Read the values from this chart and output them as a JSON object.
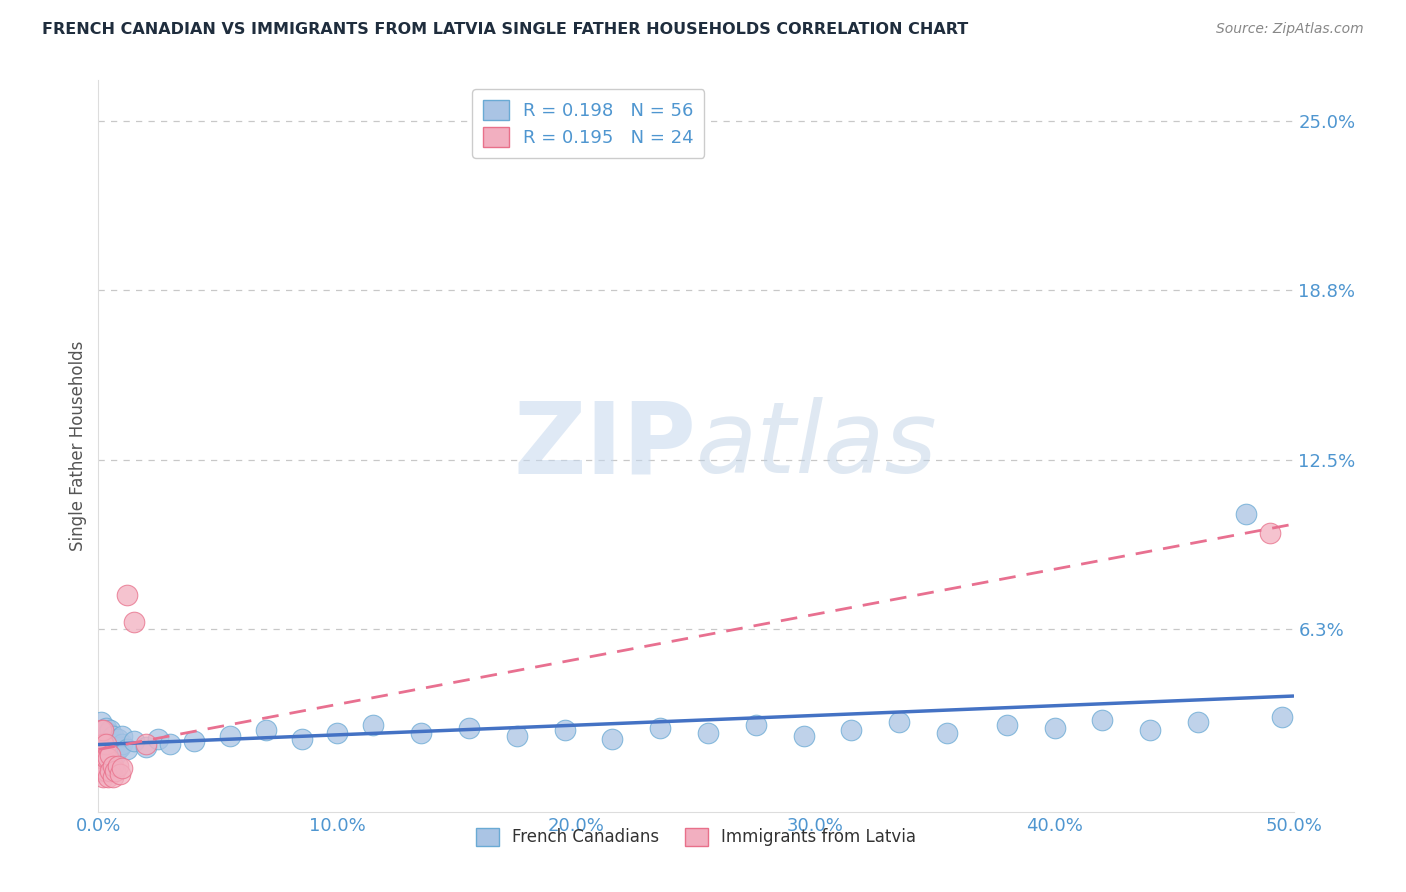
{
  "title": "FRENCH CANADIAN VS IMMIGRANTS FROM LATVIA SINGLE FATHER HOUSEHOLDS CORRELATION CHART",
  "source_text": "Source: ZipAtlas.com",
  "ylabel": "Single Father Households",
  "watermark_zip": "ZIP",
  "watermark_atlas": "atlas",
  "xlim": [
    0.0,
    0.5
  ],
  "ylim": [
    -0.005,
    0.265
  ],
  "ytick_vals": [
    0.0625,
    0.125,
    0.1875,
    0.25
  ],
  "ytick_labels": [
    "6.3%",
    "12.5%",
    "18.8%",
    "25.0%"
  ],
  "xtick_vals": [
    0.0,
    0.1,
    0.2,
    0.3,
    0.4,
    0.5
  ],
  "xtick_labels": [
    "0.0%",
    "10.0%",
    "20.0%",
    "30.0%",
    "40.0%",
    "50.0%"
  ],
  "legend_label1": "French Canadians",
  "legend_label2": "Immigrants from Latvia",
  "series1_face_color": "#aac4e4",
  "series2_face_color": "#f2afc0",
  "series1_edge_color": "#6aaad4",
  "series2_edge_color": "#e8708a",
  "line1_color": "#4472c4",
  "line2_color": "#e87090",
  "title_color": "#1f2d3d",
  "axis_label_color": "#555555",
  "tick_color": "#4f96d0",
  "gridline_color": "#c8c8c8",
  "background_color": "#ffffff",
  "r1": 0.198,
  "n1": 56,
  "r2": 0.195,
  "n2": 24,
  "fc_x": [
    0.001,
    0.001,
    0.002,
    0.002,
    0.002,
    0.003,
    0.003,
    0.003,
    0.003,
    0.004,
    0.004,
    0.004,
    0.005,
    0.005,
    0.005,
    0.005,
    0.006,
    0.006,
    0.006,
    0.007,
    0.007,
    0.008,
    0.008,
    0.009,
    0.01,
    0.01,
    0.012,
    0.015,
    0.02,
    0.025,
    0.03,
    0.04,
    0.055,
    0.07,
    0.085,
    0.1,
    0.115,
    0.135,
    0.155,
    0.175,
    0.195,
    0.215,
    0.235,
    0.255,
    0.275,
    0.295,
    0.315,
    0.335,
    0.355,
    0.38,
    0.4,
    0.42,
    0.44,
    0.46,
    0.48,
    0.495
  ],
  "fc_y": [
    0.022,
    0.028,
    0.018,
    0.025,
    0.02,
    0.015,
    0.02,
    0.023,
    0.026,
    0.018,
    0.021,
    0.024,
    0.016,
    0.019,
    0.022,
    0.025,
    0.017,
    0.02,
    0.023,
    0.016,
    0.02,
    0.018,
    0.022,
    0.019,
    0.02,
    0.023,
    0.018,
    0.021,
    0.019,
    0.022,
    0.02,
    0.021,
    0.023,
    0.025,
    0.022,
    0.024,
    0.027,
    0.024,
    0.026,
    0.023,
    0.025,
    0.022,
    0.026,
    0.024,
    0.027,
    0.023,
    0.025,
    0.028,
    0.024,
    0.027,
    0.026,
    0.029,
    0.025,
    0.028,
    0.105,
    0.03
  ],
  "lv_x": [
    0.001,
    0.001,
    0.001,
    0.002,
    0.002,
    0.002,
    0.002,
    0.003,
    0.003,
    0.003,
    0.004,
    0.004,
    0.005,
    0.005,
    0.006,
    0.006,
    0.007,
    0.008,
    0.009,
    0.01,
    0.012,
    0.015,
    0.02,
    0.49
  ],
  "lv_y": [
    0.01,
    0.018,
    0.025,
    0.008,
    0.015,
    0.02,
    0.025,
    0.01,
    0.015,
    0.02,
    0.008,
    0.015,
    0.01,
    0.016,
    0.008,
    0.012,
    0.01,
    0.012,
    0.009,
    0.011,
    0.075,
    0.065,
    0.02,
    0.098
  ]
}
